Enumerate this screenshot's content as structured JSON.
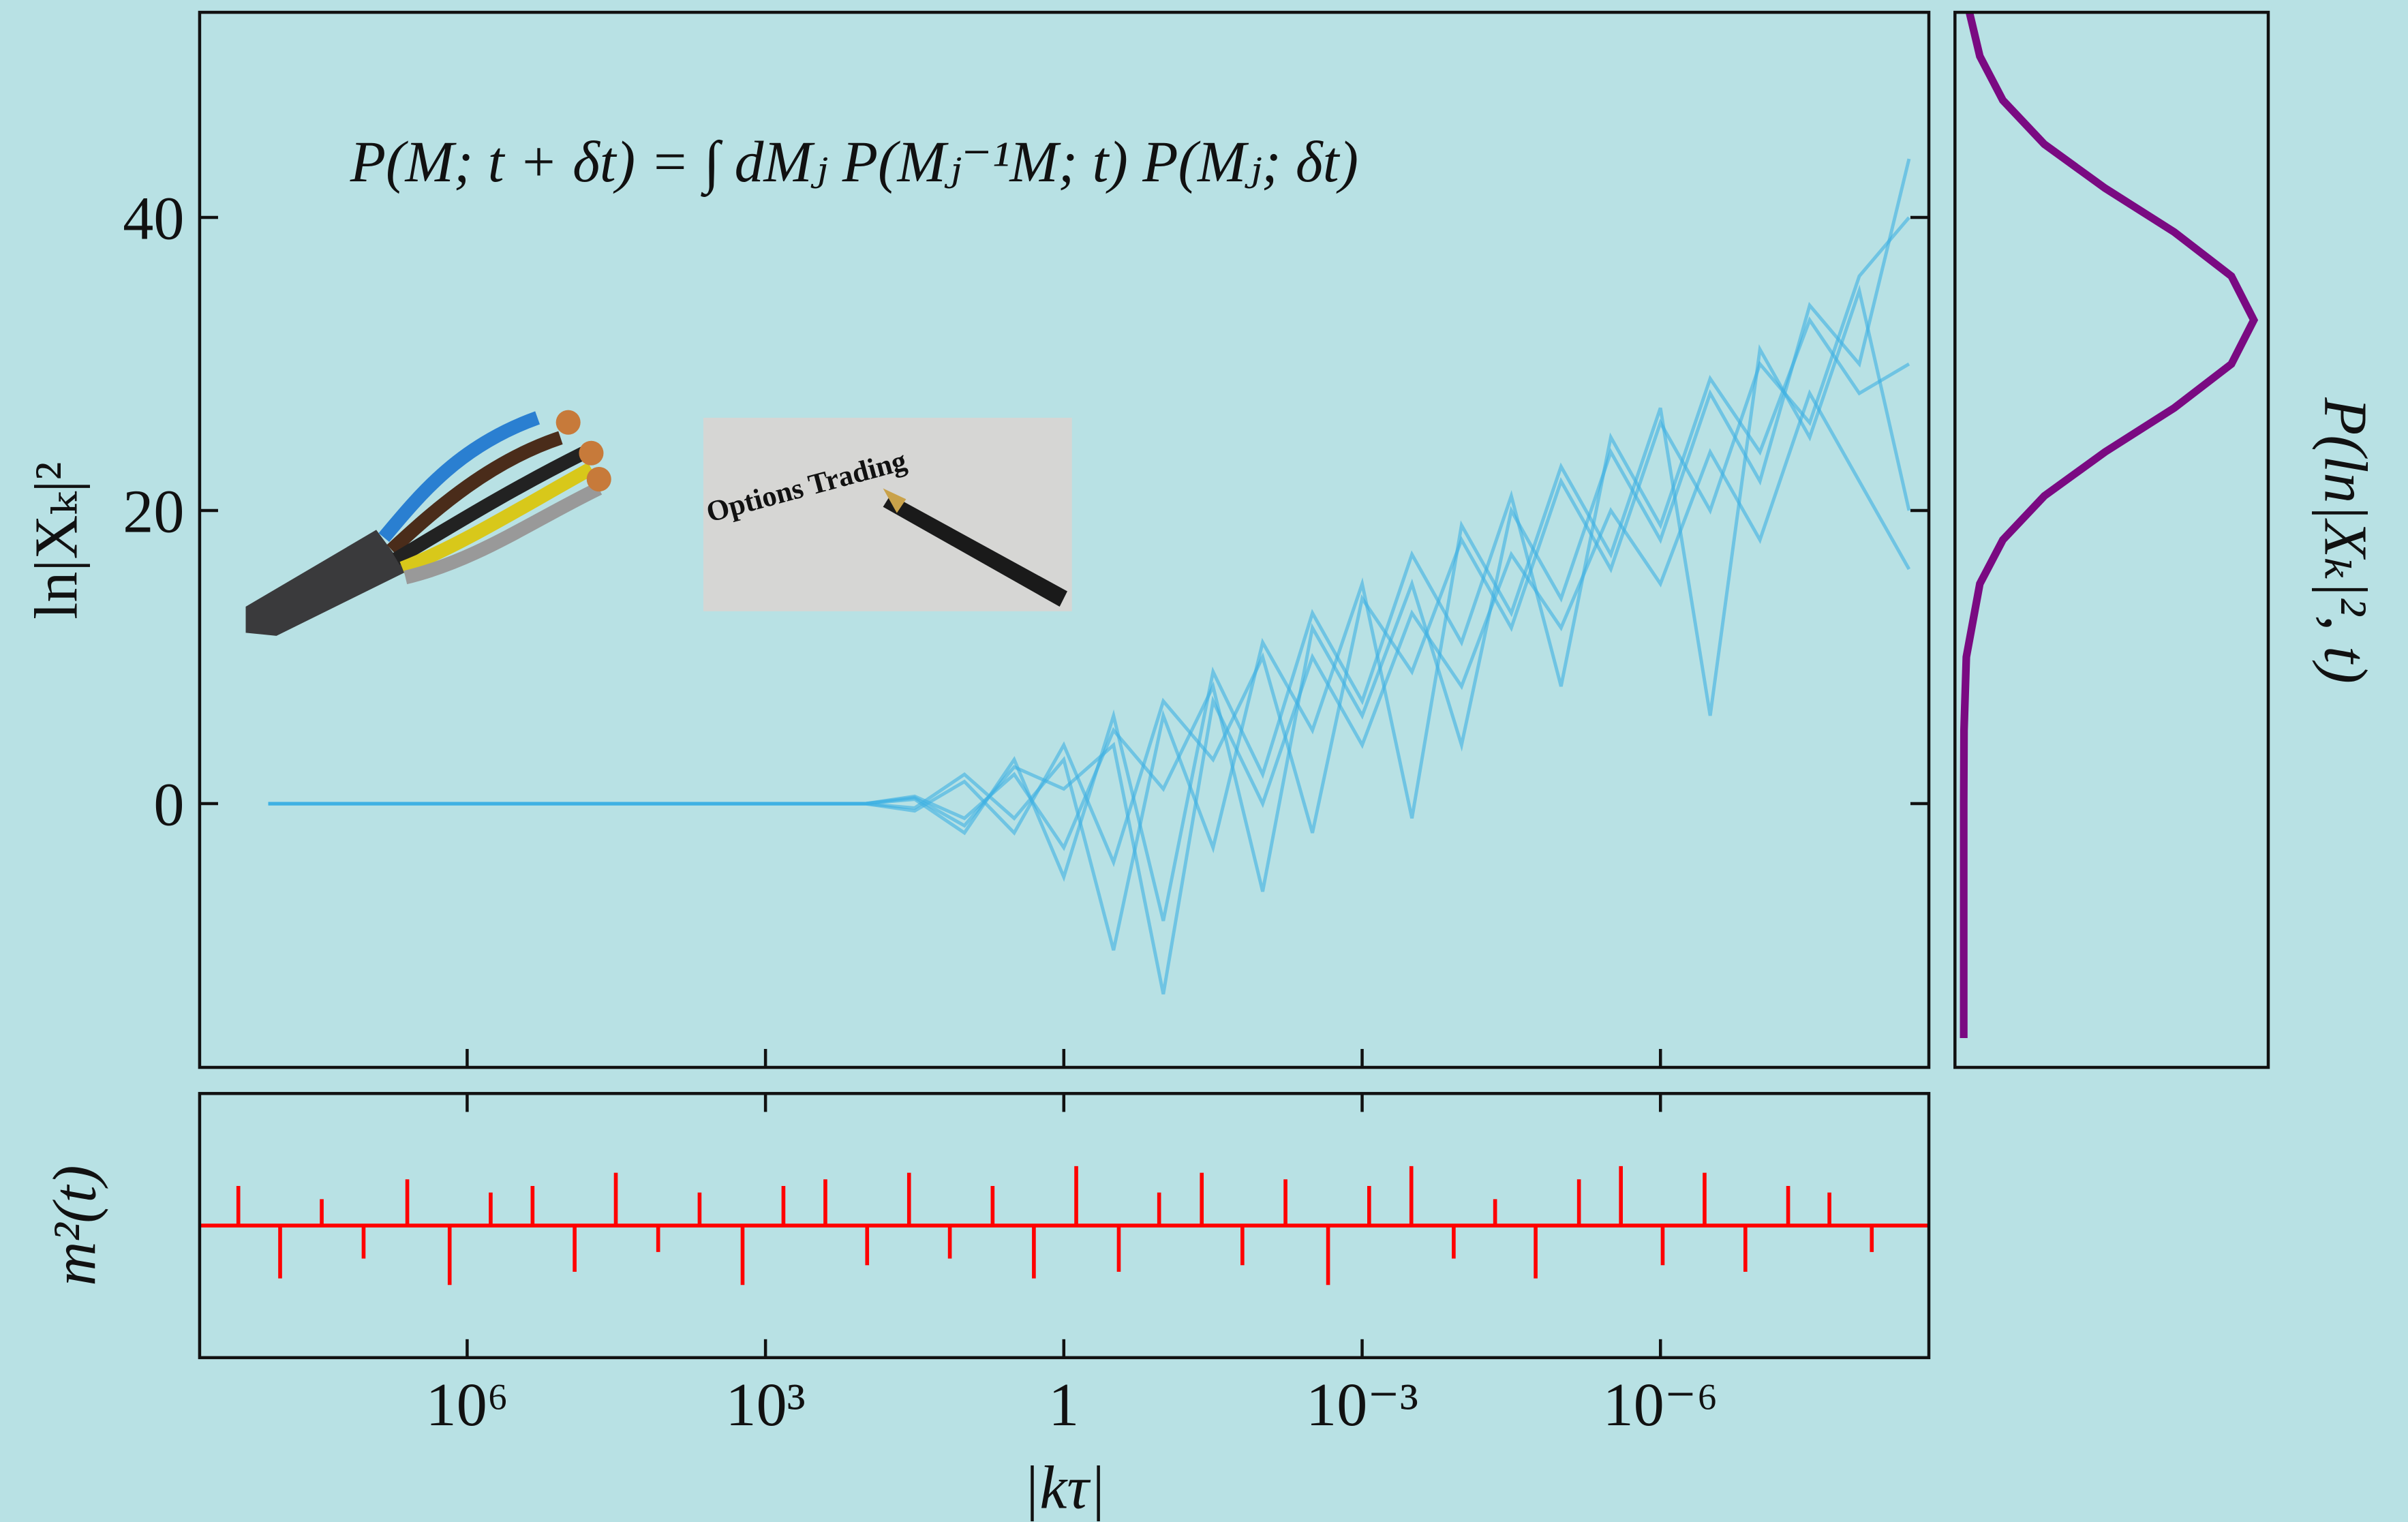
{
  "chart_data": [
    {
      "type": "line",
      "ylabel": "ln|Xₖ|²",
      "annotations": [
        "P(M; t + δt)  =  ∫ dMⱼ P(Mⱼ⁻¹M; t) P(Mⱼ; δt)",
        "Options Trading"
      ],
      "log_x": true,
      "x": [
        100000000.0,
        1000000.0,
        10000.0,
        100,
        31.6,
        10,
        3.16,
        1,
        0.316,
        0.1,
        0.0316,
        0.01,
        0.00316,
        0.001,
        0.000316,
        0.0001,
        3.16e-05,
        1e-05,
        3.16e-06,
        1e-06,
        3.16e-07,
        1e-07,
        3.16e-08,
        1e-08,
        3.16e-09
      ],
      "series": [
        {
          "color": "#3db0e3",
          "values": [
            0,
            0,
            0,
            0,
            0.5,
            -1,
            2,
            -3,
            5,
            1,
            8,
            -6,
            12,
            6,
            15,
            4,
            20,
            14,
            24,
            18,
            28,
            22,
            34,
            30,
            44
          ]
        },
        {
          "color": "#3db0e3",
          "values": [
            0,
            0,
            0,
            0,
            -0.5,
            1.5,
            -2,
            4,
            -4,
            7,
            3,
            10,
            -2,
            14,
            9,
            18,
            12,
            22,
            16,
            26,
            20,
            30,
            26,
            36,
            40
          ]
        },
        {
          "color": "#3db0e3",
          "values": [
            0,
            0,
            0,
            0,
            0.3,
            -2,
            3,
            -5,
            6,
            -8,
            9,
            2,
            13,
            7,
            17,
            11,
            21,
            8,
            25,
            19,
            29,
            24,
            33,
            28,
            30
          ]
        },
        {
          "color": "#3db0e3",
          "values": [
            0,
            0,
            0,
            0,
            -0.3,
            2,
            -1,
            3,
            -10,
            6,
            -3,
            11,
            5,
            15,
            -1,
            19,
            13,
            23,
            17,
            27,
            6,
            31,
            25,
            35,
            20
          ]
        },
        {
          "color": "#3db0e3",
          "values": [
            0,
            0,
            0,
            0,
            0.4,
            -1.5,
            2.5,
            1,
            4,
            -13,
            7,
            0,
            10,
            4,
            13,
            8,
            17,
            12,
            20,
            15,
            24,
            18,
            28,
            22,
            16
          ]
        }
      ],
      "xlim": [
        490000000.0,
        2e-09
      ],
      "ylim": [
        -18,
        54
      ],
      "yticks": [
        0,
        20,
        40
      ]
    },
    {
      "type": "spikes",
      "ylabel": "m²(t)",
      "xlabel": "|kτ|",
      "log_x": true,
      "color": "#ff0000",
      "x": [
        200000000.0,
        76000000.0,
        29000000.0,
        11000000.0,
        4000000.0,
        1500000.0,
        580000.0,
        220000.0,
        83000.0,
        32000.0,
        12000.0,
        4600.0,
        1700.0,
        660,
        250,
        95,
        36,
        14,
        5.2,
        2,
        0.75,
        0.28,
        0.11,
        0.041,
        0.016,
        0.0059,
        0.0022,
        0.00085,
        0.00032,
        0.00012,
        4.6e-05,
        1.8e-05,
        6.6e-06,
        2.5e-06,
        9.5e-07,
        3.6e-07,
        1.4e-07,
        5.2e-08,
        2e-08,
        7.5e-09
      ],
      "values": [
        0.6,
        -0.8,
        0.4,
        -0.5,
        0.7,
        -0.9,
        0.5,
        0.6,
        -0.7,
        0.8,
        -0.4,
        0.5,
        -0.9,
        0.6,
        0.7,
        -0.6,
        0.8,
        -0.5,
        0.6,
        -0.8,
        0.9,
        -0.7,
        0.5,
        0.8,
        -0.6,
        0.7,
        -0.9,
        0.6,
        0.9,
        -0.5,
        0.4,
        -0.8,
        0.7,
        0.9,
        -0.6,
        0.8,
        -0.7,
        0.6,
        0.5,
        -0.4
      ],
      "xlim": [
        490000000.0,
        2e-09
      ],
      "ylim": [
        -2,
        2
      ],
      "xticks": [
        {
          "value": 1000000,
          "label": "10⁶"
        },
        {
          "value": 1000,
          "label": "10³"
        },
        1,
        {
          "value": 0.001,
          "label": "10⁻³"
        },
        {
          "value": 1e-06,
          "label": "10⁻⁶"
        }
      ]
    },
    {
      "type": "density",
      "xlabel": "P(ln|Xₖ|², t)",
      "color": "#7a0a82",
      "y": [
        -16,
        -10,
        -5,
        0,
        5,
        10,
        15,
        18,
        21,
        24,
        27,
        30,
        33,
        36,
        39,
        42,
        45,
        48,
        51,
        54
      ],
      "values": [
        0,
        0,
        0,
        0,
        0.001,
        0.009,
        0.056,
        0.135,
        0.278,
        0.487,
        0.726,
        0.923,
        1,
        0.923,
        0.726,
        0.487,
        0.278,
        0.135,
        0.056,
        0.02
      ],
      "xlim": [
        -0.03,
        1.05
      ],
      "ylim": [
        -18,
        54
      ]
    }
  ]
}
